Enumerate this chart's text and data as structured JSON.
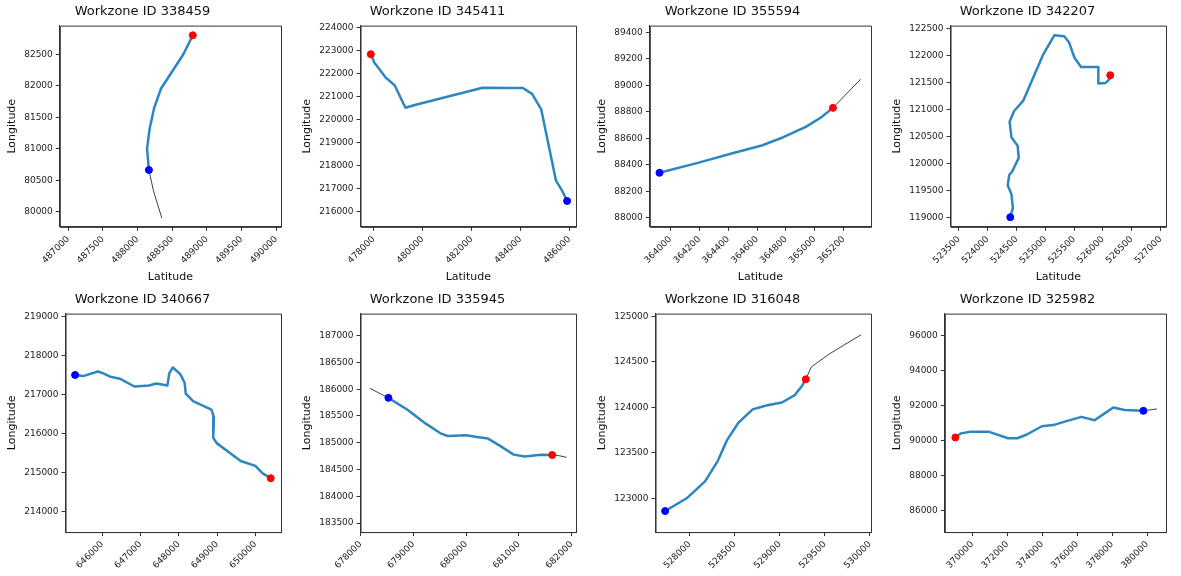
{
  "chart_data": [
    {
      "type": "line",
      "title": "Workzone ID 338459",
      "xlabel": "Latitude",
      "ylabel": "Longitude",
      "xlim": [
        486880,
        490070
      ],
      "ylim": [
        79760,
        82955
      ],
      "xticks": [
        487000,
        487500,
        488000,
        488500,
        489000,
        489500,
        490000
      ],
      "yticks": [
        80000,
        80500,
        81000,
        81500,
        82000,
        82500
      ],
      "legend": false,
      "series": [
        {
          "type": "line",
          "color": "#2e86c1",
          "x": [
            488165,
            488138,
            488176,
            488241,
            488338,
            488500,
            488662,
            488798
          ],
          "values": [
            80663,
            80997,
            81321,
            81650,
            81952,
            82226,
            82500,
            82801
          ]
        },
        {
          "type": "line",
          "color": "#404040",
          "x": [
            488165,
            488230,
            488349
          ],
          "values": [
            80663,
            80334,
            79907
          ]
        },
        {
          "type": "scatter",
          "color": "#ff0000",
          "x": [
            488798
          ],
          "values": [
            82801
          ]
        },
        {
          "type": "scatter",
          "color": "#0000ff",
          "x": [
            488165
          ],
          "values": [
            80663
          ]
        }
      ]
    },
    {
      "type": "line",
      "title": "Workzone ID 345411",
      "xlabel": "Latitude",
      "ylabel": "Longitude",
      "xlim": [
        477461,
        486270
      ],
      "ylim": [
        215340,
        224090
      ],
      "xticks": [
        478000,
        480000,
        482000,
        484000,
        486000
      ],
      "yticks": [
        216000,
        217000,
        218000,
        219000,
        220000,
        221000,
        222000,
        223000,
        224000
      ],
      "legend": false,
      "series": [
        {
          "type": "line",
          "color": "#2e86c1",
          "x": [
            477880,
            478030,
            478479,
            478854,
            479228,
            479303,
            479678,
            482450,
            484100,
            484474,
            484849,
            485448,
            485700,
            485906
          ],
          "values": [
            222847,
            222472,
            221841,
            221495,
            220670,
            220520,
            220640,
            221390,
            221375,
            221120,
            220444,
            217366,
            216916,
            216465
          ]
        },
        {
          "type": "scatter",
          "color": "#ff0000",
          "x": [
            477880
          ],
          "values": [
            222847
          ]
        },
        {
          "type": "scatter",
          "color": "#0000ff",
          "x": [
            485906
          ],
          "values": [
            216465
          ]
        }
      ]
    },
    {
      "type": "line",
      "title": "Workzone ID 355594",
      "xlabel": "Latitude",
      "ylabel": "Longitude",
      "xlim": [
        363857,
        365390
      ],
      "ylim": [
        87930,
        89452
      ],
      "xticks": [
        364000,
        364200,
        364400,
        364600,
        364800,
        365000,
        365200
      ],
      "yticks": [
        88000,
        88200,
        88400,
        88600,
        88800,
        89000,
        89200,
        89400
      ],
      "legend": false,
      "series": [
        {
          "type": "line",
          "color": "#2e86c1",
          "x": [
            363924,
            364183,
            364443,
            364626,
            364782,
            364938,
            365043,
            365126
          ],
          "values": [
            88339,
            88412,
            88491,
            88543,
            88608,
            88686,
            88757,
            88830
          ]
        },
        {
          "type": "line",
          "color": "#404040",
          "x": [
            365126,
            365316
          ],
          "values": [
            88830,
            89044
          ]
        },
        {
          "type": "scatter",
          "color": "#ff0000",
          "x": [
            365126
          ],
          "values": [
            88830
          ]
        },
        {
          "type": "scatter",
          "color": "#0000ff",
          "x": [
            363924
          ],
          "values": [
            88339
          ]
        }
      ]
    },
    {
      "type": "line",
      "title": "Workzone ID 342207",
      "xlabel": "Latitude",
      "ylabel": "Longitude",
      "xlim": [
        523354,
        527095
      ],
      "ylim": [
        118821,
        122551
      ],
      "xticks": [
        523500,
        524000,
        524500,
        525000,
        525500,
        526000,
        526500,
        527000
      ],
      "yticks": [
        119000,
        119500,
        120000,
        120500,
        121000,
        121500,
        122000,
        122500
      ],
      "legend": false,
      "series": [
        {
          "type": "line",
          "color": "#2e86c1",
          "x": [
            524391,
            524436,
            524410,
            524347,
            524373,
            524424,
            524538,
            524519,
            524410,
            524379,
            524455,
            524614,
            524964,
            525155,
            525327,
            525410,
            525506,
            525620,
            525920,
            525920,
            526047,
            526127,
            526127
          ],
          "values": [
            119000,
            119173,
            119429,
            119590,
            119782,
            119846,
            120100,
            120324,
            120483,
            120771,
            120963,
            121155,
            122020,
            122372,
            122353,
            122244,
            121956,
            121783,
            121783,
            121476,
            121489,
            121573,
            121631
          ]
        },
        {
          "type": "scatter",
          "color": "#ff0000",
          "x": [
            526127
          ],
          "values": [
            121631
          ]
        },
        {
          "type": "scatter",
          "color": "#0000ff",
          "x": [
            524391
          ],
          "values": [
            119000
          ]
        }
      ]
    },
    {
      "type": "line",
      "title": "Workzone ID 340667",
      "ylabel": "Longitude",
      "xlim": [
        645043,
        650670
      ],
      "ylim": [
        213473,
        219067
      ],
      "xticks": [
        646000,
        647000,
        648000,
        649000,
        650000
      ],
      "yticks": [
        214000,
        215000,
        216000,
        217000,
        218000,
        219000
      ],
      "legend": false,
      "series": [
        {
          "type": "line",
          "color": "#2e86c1",
          "x": [
            645292,
            645502,
            645885,
            646029,
            646220,
            646459,
            646842,
            647225,
            647416,
            647703,
            647751,
            647847,
            648038,
            648153,
            648182,
            648373,
            648852,
            648919,
            648900,
            648996,
            649330,
            649617,
            650000,
            650191,
            650402
          ],
          "values": [
            217496,
            217467,
            217583,
            217535,
            217449,
            217401,
            217200,
            217228,
            217276,
            217228,
            217535,
            217688,
            217516,
            217296,
            217018,
            216826,
            216606,
            216414,
            215887,
            215744,
            215504,
            215293,
            215169,
            214977,
            214852
          ]
        },
        {
          "type": "scatter",
          "color": "#ff0000",
          "x": [
            650402
          ],
          "values": [
            214852
          ]
        },
        {
          "type": "scatter",
          "color": "#0000ff",
          "x": [
            645292
          ],
          "values": [
            217496
          ]
        }
      ]
    },
    {
      "type": "line",
      "title": "Workzone ID 335945",
      "ylabel": "Longitude",
      "xlim": [
        678000,
        682083
      ],
      "ylim": [
        183332,
        187412
      ],
      "xticks": [
        678000,
        679000,
        680000,
        681000,
        682000
      ],
      "yticks": [
        183500,
        184000,
        184500,
        185000,
        185500,
        186000,
        186500,
        187000
      ],
      "legend": false,
      "series": [
        {
          "type": "line",
          "color": "#2e86c1",
          "x": [
            678528,
            678889,
            679236,
            679514,
            679653,
            680000,
            680208,
            680417,
            680660,
            680903,
            681111,
            681424,
            681632
          ],
          "values": [
            185839,
            185616,
            185357,
            185176,
            185127,
            185141,
            185106,
            185078,
            184932,
            184778,
            184743,
            184778,
            184771
          ]
        },
        {
          "type": "line",
          "color": "#404040",
          "x": [
            678181,
            678528
          ],
          "values": [
            186014,
            185839
          ]
        },
        {
          "type": "line",
          "color": "#404040",
          "x": [
            681632,
            681771,
            681896
          ],
          "values": [
            184771,
            184757,
            184729
          ]
        },
        {
          "type": "scatter",
          "color": "#ff0000",
          "x": [
            681632
          ],
          "values": [
            184771
          ]
        },
        {
          "type": "scatter",
          "color": "#0000ff",
          "x": [
            678528
          ],
          "values": [
            185839
          ]
        }
      ]
    },
    {
      "type": "line",
      "title": "Workzone ID 316048",
      "ylabel": "Longitude",
      "xlim": [
        527622,
        530012
      ],
      "ylim": [
        122629,
        125029
      ],
      "xticks": [
        528000,
        528500,
        529000,
        529500,
        530000
      ],
      "yticks": [
        123000,
        123500,
        124000,
        124500,
        125000
      ],
      "legend": false,
      "series": [
        {
          "type": "line",
          "color": "#2e86c1",
          "x": [
            527728,
            527967,
            528171,
            528313,
            528415,
            528537,
            528699,
            528862,
            529024,
            529167,
            529248,
            529289
          ],
          "values": [
            122860,
            123000,
            123186,
            123412,
            123639,
            123825,
            123977,
            124023,
            124052,
            124134,
            124237,
            124307
          ]
        },
        {
          "type": "line",
          "color": "#404040",
          "x": [
            529289,
            529350,
            529553,
            529898
          ],
          "values": [
            124307,
            124443,
            124588,
            124794
          ]
        },
        {
          "type": "scatter",
          "color": "#ff0000",
          "x": [
            529289
          ],
          "values": [
            124307
          ]
        },
        {
          "type": "scatter",
          "color": "#0000ff",
          "x": [
            527728
          ],
          "values": [
            122860
          ]
        }
      ]
    },
    {
      "type": "line",
      "title": "Workzone ID 325982",
      "ylabel": "Longitude",
      "xlim": [
        368430,
        381075
      ],
      "ylim": [
        84753,
        97269
      ],
      "xticks": [
        370000,
        372000,
        374000,
        376000,
        378000,
        380000
      ],
      "yticks": [
        86000,
        88000,
        90000,
        92000,
        94000,
        96000
      ],
      "legend": false,
      "series": [
        {
          "type": "line",
          "color": "#2e86c1",
          "x": [
            369032,
            369355,
            369892,
            370968,
            372043,
            372580,
            373118,
            373978,
            374623,
            375483,
            376235,
            376988,
            377525,
            378063,
            378708,
            379783
          ],
          "values": [
            90171,
            90408,
            90494,
            90494,
            90128,
            90128,
            90343,
            90816,
            90881,
            91139,
            91354,
            91160,
            91526,
            91891,
            91741,
            91698
          ]
        },
        {
          "type": "line",
          "color": "#404040",
          "x": [
            379783,
            380535
          ],
          "values": [
            91698,
            91805
          ]
        },
        {
          "type": "scatter",
          "color": "#ff0000",
          "x": [
            369032
          ],
          "values": [
            90171
          ]
        },
        {
          "type": "scatter",
          "color": "#0000ff",
          "x": [
            379783
          ],
          "values": [
            91698
          ]
        }
      ]
    }
  ]
}
